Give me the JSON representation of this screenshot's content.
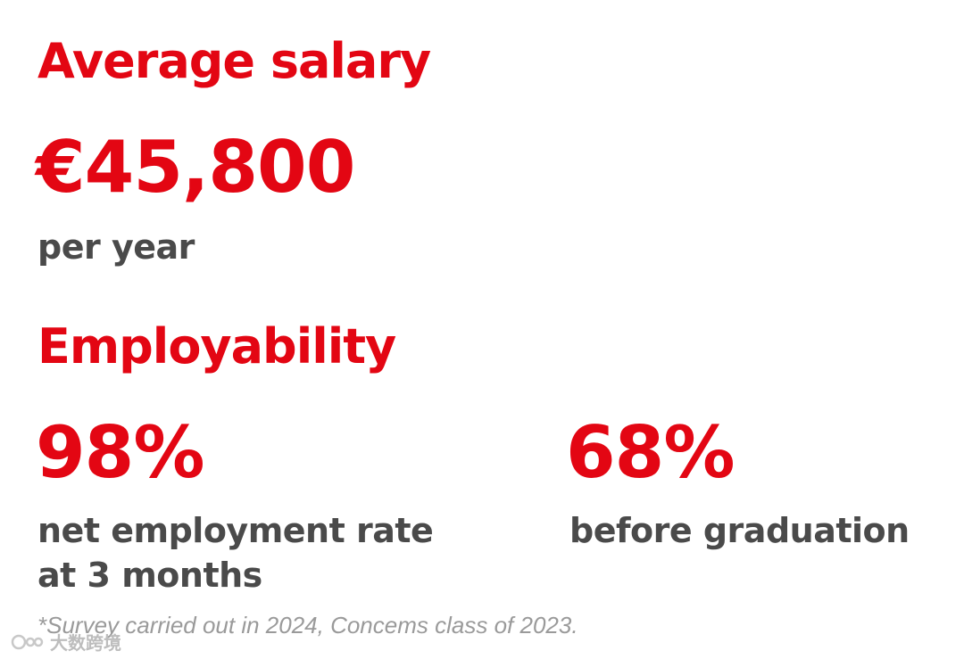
{
  "salary": {
    "title": "Average salary",
    "value": "€45,800",
    "unit": "per year"
  },
  "employability": {
    "title": "Employability",
    "stats": [
      {
        "value": "98%",
        "caption_line1": "net employment rate",
        "caption_line2": "at 3 months"
      },
      {
        "value": "68%",
        "caption_line1": "before graduation"
      }
    ]
  },
  "footnote": "*Survey carried out in 2024, Concems class of 2023.",
  "watermark": {
    "text": "大数跨境"
  },
  "colors": {
    "accent": "#e30613",
    "text": "#4a4a4a",
    "footnote": "#9a9a9a",
    "background": "#ffffff"
  }
}
